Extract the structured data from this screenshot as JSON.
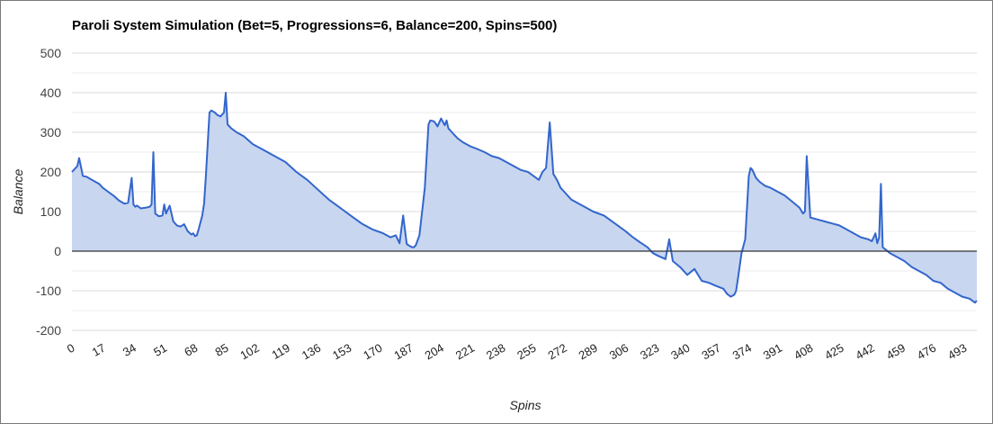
{
  "chart_data": {
    "type": "area",
    "title": "Paroli System Simulation (Bet=5, Progressions=6, Balance=200, Spins=500)",
    "xlabel": "Spins",
    "ylabel": "Balance",
    "xlim": [
      0,
      500
    ],
    "ylim": [
      -200,
      500
    ],
    "y_ticks": [
      "500",
      "400",
      "300",
      "200",
      "100",
      "0",
      "-100",
      "-200"
    ],
    "x_ticks": [
      "0",
      "17",
      "34",
      "51",
      "68",
      "85",
      "102",
      "119",
      "136",
      "153",
      "170",
      "187",
      "204",
      "221",
      "238",
      "255",
      "272",
      "289",
      "306",
      "323",
      "340",
      "357",
      "374",
      "391",
      "408",
      "425",
      "442",
      "459",
      "476",
      "493"
    ],
    "grid": true,
    "legend": "none",
    "series": [
      {
        "x": [
          0,
          3,
          4,
          6,
          8,
          11,
          15,
          17,
          20,
          23,
          26,
          29,
          31,
          33,
          34,
          35,
          36,
          38,
          41,
          43,
          44,
          45,
          46,
          48,
          50,
          51,
          52,
          54,
          56,
          58,
          60,
          62,
          64,
          66,
          67,
          68,
          69,
          70,
          72,
          73,
          74,
          76,
          77,
          79,
          80,
          82,
          84,
          85,
          86,
          88,
          91,
          95,
          100,
          106,
          112,
          118,
          124,
          130,
          136,
          142,
          148,
          154,
          160,
          166,
          172,
          176,
          179,
          181,
          183,
          185,
          187,
          188,
          189,
          190,
          192,
          193,
          195,
          197,
          198,
          200,
          201,
          202,
          204,
          206,
          207,
          208,
          210,
          213,
          216,
          220,
          224,
          228,
          232,
          236,
          240,
          244,
          248,
          252,
          255,
          258,
          260,
          262,
          264,
          266,
          268,
          269,
          270,
          272,
          276,
          282,
          288,
          294,
          300,
          306,
          310,
          314,
          318,
          321,
          324,
          328,
          330,
          332,
          336,
          340,
          344,
          348,
          352,
          356,
          360,
          362,
          364,
          366,
          367,
          368,
          370,
          372,
          374,
          375,
          376,
          377,
          378,
          380,
          383,
          386,
          390,
          394,
          398,
          402,
          404,
          405,
          406,
          408,
          412,
          416,
          420,
          424,
          428,
          432,
          436,
          440,
          442,
          444,
          445,
          446,
          447,
          448,
          452,
          456,
          460,
          464,
          468,
          472,
          476,
          480,
          484,
          488,
          492,
          496,
          499,
          500
        ],
        "values": [
          200,
          215,
          235,
          190,
          188,
          180,
          170,
          160,
          150,
          140,
          128,
          120,
          122,
          185,
          118,
          112,
          115,
          108,
          110,
          112,
          118,
          250,
          95,
          88,
          90,
          118,
          95,
          115,
          75,
          65,
          62,
          68,
          50,
          42,
          45,
          38,
          40,
          55,
          90,
          120,
          190,
          350,
          355,
          350,
          345,
          340,
          350,
          400,
          320,
          310,
          300,
          290,
          270,
          255,
          240,
          225,
          200,
          180,
          155,
          130,
          110,
          90,
          70,
          55,
          45,
          35,
          40,
          20,
          90,
          18,
          12,
          10,
          10,
          15,
          40,
          80,
          160,
          320,
          330,
          328,
          322,
          315,
          335,
          318,
          330,
          310,
          300,
          285,
          275,
          265,
          258,
          250,
          240,
          235,
          225,
          215,
          205,
          200,
          190,
          180,
          200,
          210,
          325,
          195,
          180,
          170,
          160,
          150,
          130,
          115,
          100,
          90,
          70,
          50,
          35,
          22,
          10,
          -5,
          -12,
          -20,
          30,
          -25,
          -40,
          -60,
          -45,
          -75,
          -80,
          -88,
          -95,
          -108,
          -115,
          -110,
          -100,
          -70,
          -5,
          30,
          190,
          210,
          205,
          195,
          185,
          175,
          165,
          160,
          150,
          140,
          125,
          110,
          95,
          100,
          240,
          85,
          80,
          75,
          70,
          65,
          55,
          45,
          35,
          30,
          25,
          45,
          20,
          35,
          170,
          10,
          -5,
          -15,
          -25,
          -40,
          -50,
          -60,
          -75,
          -80,
          -95,
          -105,
          -115,
          -120,
          -130,
          -125
        ]
      }
    ]
  },
  "colors": {
    "line": "#3366cc",
    "fill": "#c5d4ef",
    "grid": "#d9d9d9",
    "zero_line": "#333333"
  }
}
